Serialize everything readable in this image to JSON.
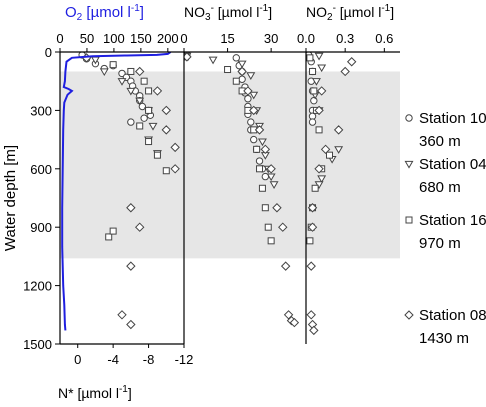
{
  "chart_data": {
    "type": "scatter",
    "ylabel": "Water depth [m]",
    "y_axis": {
      "range": [
        1500,
        0
      ],
      "ticks": [
        "0",
        "300",
        "600",
        "900",
        "1200",
        "1500"
      ],
      "tick_values": [
        0,
        300,
        600,
        900,
        1200,
        1500
      ]
    },
    "shaded_depth_range": [
      100,
      1060
    ],
    "panels": [
      {
        "id": "o2-nstar",
        "top_label_main": "O",
        "top_label_sub": "2",
        "top_label_unit": " [µmol l",
        "top_label_exp": "-1",
        "top_label_end": "]",
        "top_label_color": "#1f1fe0",
        "top_range": [
          0,
          230
        ],
        "top_ticks": [
          "0",
          "50",
          "100",
          "150",
          "200"
        ],
        "top_tick_values": [
          0,
          50,
          100,
          150,
          200
        ],
        "bottom_label_main": "N* [µmol l",
        "bottom_label_exp": "-1",
        "bottom_label_end": "]",
        "bottom_range": [
          2,
          -12
        ],
        "bottom_ticks": [
          "0",
          "-4",
          "-8",
          "-12"
        ],
        "bottom_tick_values": [
          0,
          -4,
          -8,
          -12
        ]
      },
      {
        "id": "no3",
        "top_label_main": "NO",
        "top_label_sub": "3",
        "top_label_sup": "-",
        "top_label_unit": " [µmol l",
        "top_label_exp": "-1",
        "top_label_end": "]",
        "top_range": [
          0,
          42
        ],
        "top_ticks": [
          "0",
          "15",
          "30"
        ],
        "top_tick_values": [
          0,
          15,
          30
        ]
      },
      {
        "id": "no2",
        "top_label_main": "NO",
        "top_label_sub": "2",
        "top_label_sup": "-",
        "top_label_unit": " [µmol l",
        "top_label_exp": "-1",
        "top_label_end": "]",
        "top_range": [
          0,
          0.72
        ],
        "top_ticks": [
          "0.0",
          "0.3",
          "0.6"
        ],
        "top_tick_values": [
          0,
          0.3,
          0.6
        ]
      }
    ],
    "legend": [
      {
        "marker": "circle",
        "name": "Station 10",
        "depth": "360 m"
      },
      {
        "marker": "triangle",
        "name": "Station 04",
        "depth": "680 m"
      },
      {
        "marker": "square",
        "name": "Station 16",
        "depth": "970 m"
      },
      {
        "marker": "diamond",
        "name": "Station 08",
        "depth": "1430 m"
      }
    ],
    "o2_profile": {
      "color": "#1f1fe0",
      "points": [
        [
          205,
          0
        ],
        [
          200,
          10
        ],
        [
          180,
          15
        ],
        [
          120,
          18
        ],
        [
          60,
          22
        ],
        [
          22,
          30
        ],
        [
          12,
          50
        ],
        [
          10,
          100
        ],
        [
          9,
          150
        ],
        [
          7,
          180
        ],
        [
          16,
          190
        ],
        [
          22,
          200
        ],
        [
          14,
          220
        ],
        [
          8,
          260
        ],
        [
          7,
          300
        ],
        [
          6,
          400
        ],
        [
          5,
          600
        ],
        [
          4,
          800
        ],
        [
          4,
          1000
        ],
        [
          5,
          1100
        ],
        [
          6,
          1200
        ],
        [
          8,
          1300
        ],
        [
          9,
          1400
        ],
        [
          10,
          1430
        ]
      ]
    },
    "nstar": {
      "circle": [
        [
          -0.5,
          15
        ],
        [
          -1,
          35
        ],
        [
          -2,
          60
        ],
        [
          -3,
          85
        ],
        [
          -4,
          70
        ],
        [
          -5,
          110
        ],
        [
          -5.5,
          130
        ],
        [
          -6,
          150
        ],
        [
          -6.2,
          175
        ],
        [
          -6.5,
          200
        ],
        [
          -7,
          225
        ],
        [
          -7,
          250
        ],
        [
          -7.3,
          280
        ],
        [
          -8,
          300
        ],
        [
          -8.2,
          325
        ],
        [
          -7.5,
          340
        ],
        [
          -6,
          360
        ]
      ],
      "triangle": [
        [
          -2,
          40
        ],
        [
          -3,
          100
        ],
        [
          -5,
          150
        ],
        [
          -6,
          200
        ],
        [
          -7,
          250
        ],
        [
          -8,
          300
        ],
        [
          -8.5,
          380
        ],
        [
          -8,
          450
        ],
        [
          -9,
          520
        ]
      ],
      "square": [
        [
          -4,
          65
        ],
        [
          -6,
          100
        ],
        [
          -7.5,
          150
        ],
        [
          -8,
          200
        ],
        [
          -8,
          300
        ],
        [
          -7,
          380
        ],
        [
          -8,
          460
        ],
        [
          -9,
          530
        ],
        [
          -10,
          610
        ],
        [
          -3.5,
          950
        ],
        [
          -4,
          920
        ]
      ],
      "diamond": [
        [
          -1,
          30
        ],
        [
          -7,
          100
        ],
        [
          -9,
          200
        ],
        [
          -10,
          300
        ],
        [
          -10,
          400
        ],
        [
          -11,
          490
        ],
        [
          -11,
          600
        ],
        [
          -6,
          800
        ],
        [
          -7,
          900
        ],
        [
          -6,
          1100
        ],
        [
          -5,
          1350
        ],
        [
          -6,
          1400
        ]
      ]
    },
    "no3": {
      "circle": [
        [
          1,
          15
        ],
        [
          18,
          30
        ],
        [
          19,
          70
        ],
        [
          20,
          100
        ],
        [
          20,
          140
        ],
        [
          21,
          180
        ],
        [
          21,
          210
        ],
        [
          22,
          240
        ],
        [
          22,
          280
        ],
        [
          22,
          320
        ],
        [
          23,
          360
        ],
        [
          23,
          400
        ],
        [
          24,
          450
        ],
        [
          25,
          500
        ],
        [
          26,
          560
        ],
        [
          27,
          600
        ],
        [
          28,
          640
        ]
      ],
      "triangle": [
        [
          1,
          20
        ],
        [
          10,
          40
        ],
        [
          20,
          60
        ],
        [
          23,
          120
        ],
        [
          24,
          220
        ],
        [
          25,
          300
        ],
        [
          26,
          380
        ],
        [
          27,
          460
        ],
        [
          28,
          530
        ],
        [
          29,
          600
        ],
        [
          30,
          640
        ],
        [
          31,
          680
        ]
      ],
      "square": [
        [
          0.5,
          25
        ],
        [
          15,
          90
        ],
        [
          18,
          150
        ],
        [
          20,
          200
        ],
        [
          22,
          300
        ],
        [
          24,
          400
        ],
        [
          25,
          500
        ],
        [
          26,
          600
        ],
        [
          27,
          700
        ],
        [
          28,
          800
        ],
        [
          29,
          900
        ],
        [
          30,
          970
        ]
      ],
      "diamond": [
        [
          1,
          25
        ],
        [
          20,
          100
        ],
        [
          22,
          200
        ],
        [
          24,
          300
        ],
        [
          26,
          400
        ],
        [
          28,
          500
        ],
        [
          30,
          600
        ],
        [
          32,
          800
        ],
        [
          34,
          900
        ],
        [
          35,
          1100
        ],
        [
          36,
          1350
        ],
        [
          37,
          1380
        ],
        [
          38,
          1390
        ]
      ]
    },
    "no2": {
      "circle": [
        [
          0.02,
          15
        ],
        [
          0.04,
          50
        ],
        [
          0.05,
          100
        ],
        [
          0.04,
          150
        ],
        [
          0.05,
          200
        ],
        [
          0.06,
          250
        ],
        [
          0.05,
          300
        ],
        [
          0.05,
          330
        ],
        [
          0.05,
          360
        ]
      ],
      "triangle": [
        [
          0.1,
          20
        ],
        [
          0.12,
          80
        ],
        [
          0.08,
          150
        ],
        [
          0.07,
          220
        ],
        [
          0.1,
          300
        ],
        [
          0.25,
          500
        ],
        [
          0.2,
          550
        ],
        [
          0.12,
          650
        ],
        [
          0.1,
          680
        ]
      ],
      "square": [
        [
          0.03,
          30
        ],
        [
          0.05,
          100
        ],
        [
          0.06,
          200
        ],
        [
          0.08,
          300
        ],
        [
          0.1,
          400
        ],
        [
          0.18,
          530
        ],
        [
          0.12,
          600
        ],
        [
          0.07,
          700
        ],
        [
          0.05,
          800
        ],
        [
          0.04,
          900
        ],
        [
          0.03,
          970
        ]
      ],
      "diamond": [
        [
          0.35,
          50
        ],
        [
          0.3,
          100
        ],
        [
          0.12,
          200
        ],
        [
          0.1,
          300
        ],
        [
          0.25,
          400
        ],
        [
          0.15,
          500
        ],
        [
          0.1,
          600
        ],
        [
          0.05,
          800
        ],
        [
          0.05,
          900
        ],
        [
          0.04,
          1100
        ],
        [
          0.04,
          1350
        ],
        [
          0.05,
          1400
        ],
        [
          0.06,
          1430
        ]
      ]
    }
  }
}
